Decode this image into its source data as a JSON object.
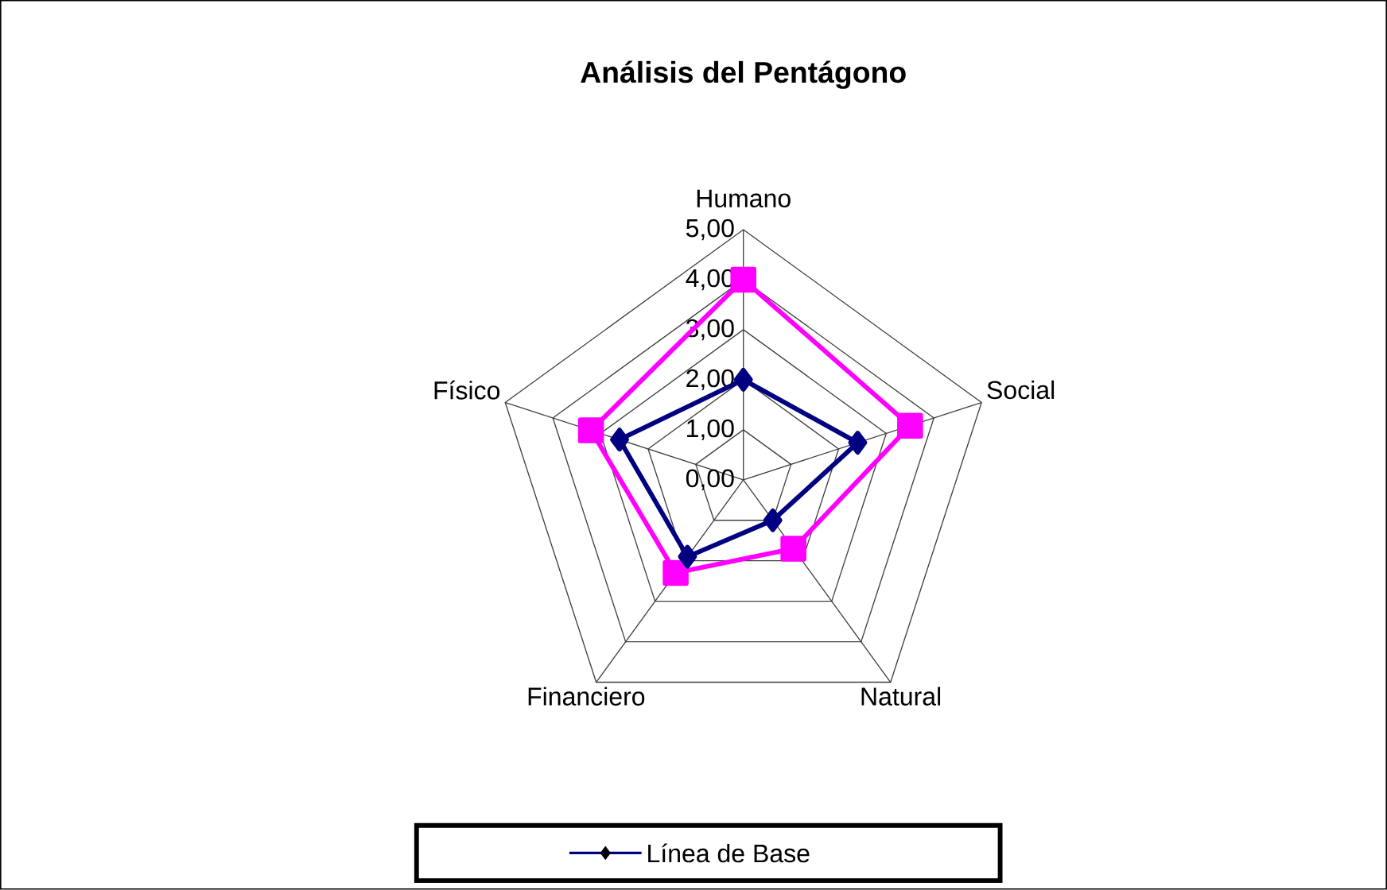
{
  "chart_data": {
    "type": "radar",
    "title": "Análisis del Pentágono",
    "categories": [
      "Humano",
      "Social",
      "Natural",
      "Financiero",
      "Físico"
    ],
    "ylim": [
      0,
      5
    ],
    "yticks": [
      {
        "value": 0,
        "label": "0,00"
      },
      {
        "value": 1,
        "label": "1,00"
      },
      {
        "value": 2,
        "label": "2,00"
      },
      {
        "value": 3,
        "label": "3,00"
      },
      {
        "value": 4,
        "label": "4,00"
      },
      {
        "value": 5,
        "label": "5,00"
      }
    ],
    "grid": true,
    "legend": "bottom",
    "series": [
      {
        "name": "Línea de Base",
        "color": "#000080",
        "marker": "diamond",
        "values": [
          2.0,
          2.4,
          1.0,
          1.9,
          2.6
        ]
      },
      {
        "color": "#ff00ff",
        "marker": "square",
        "values": [
          4.0,
          3.5,
          1.7,
          2.3,
          3.2
        ]
      }
    ]
  }
}
